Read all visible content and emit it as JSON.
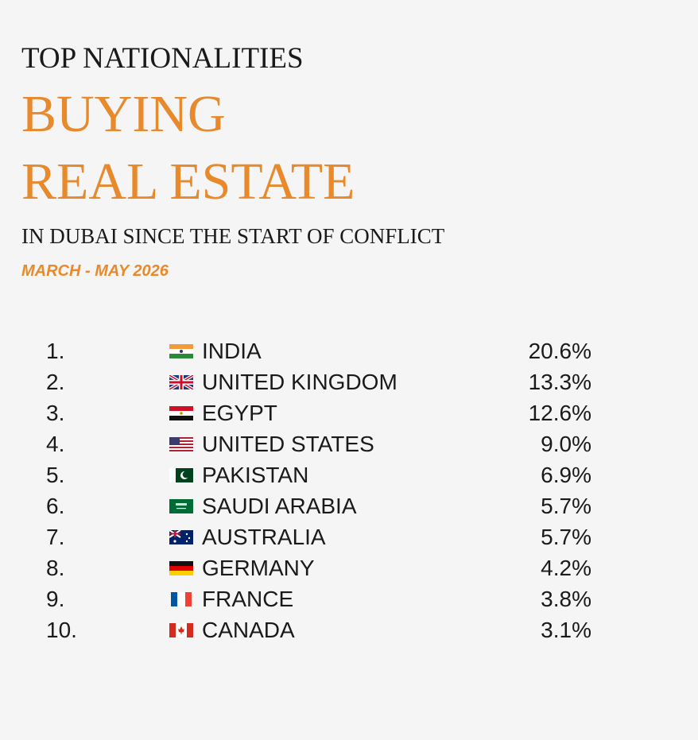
{
  "header": {
    "kicker": "TOP NATIONALITIES",
    "title_line1": "BUYING",
    "title_line2": "REAL ESTATE",
    "subtitle": "IN DUBAI SINCE THE START OF CONFLICT",
    "period": "MARCH - MAY 2026"
  },
  "table": {
    "rows": [
      [
        "1.",
        "INDIA",
        "20.6%"
      ],
      [
        "2.",
        "UNITED KINGDOM",
        "13.3%"
      ],
      [
        "3.",
        "EGYPT",
        "12.6%"
      ],
      [
        "4.",
        "UNITED STATES",
        "9.0%"
      ],
      [
        "5.",
        "PAKISTAN",
        "6.9%"
      ],
      [
        "6.",
        "SAUDI ARABIA",
        "5.7%"
      ],
      [
        "7.",
        "AUSTRALIA",
        "5.7%"
      ],
      [
        "8.",
        "GERMANY",
        "4.2%"
      ],
      [
        "9.",
        "FRANCE",
        "3.8%"
      ],
      [
        "10.",
        "CANADA",
        "3.1%"
      ]
    ]
  }
}
